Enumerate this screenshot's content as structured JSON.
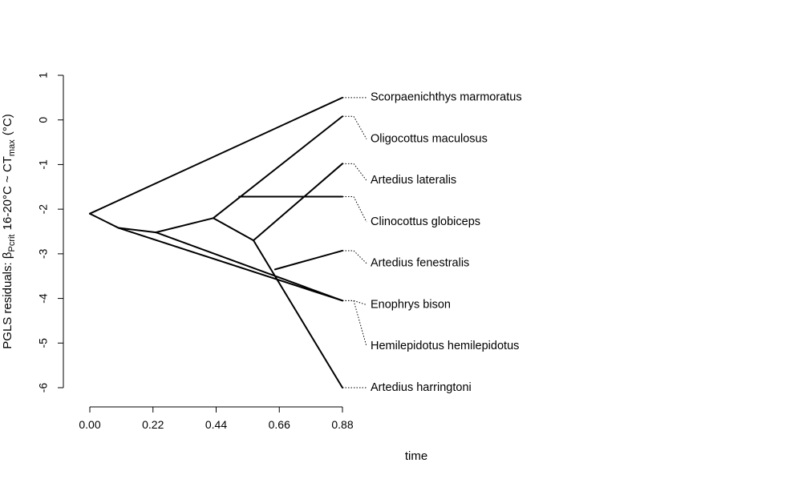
{
  "chart_data": {
    "type": "phenogram",
    "xlabel": "time",
    "ylabel": {
      "prefix": "PGLS residuals: ",
      "beta": "β",
      "beta_sub": "Pcrit",
      "middle": " 16-20°C ~ CT",
      "ct_sub": "max",
      "suffix": " (°C)"
    },
    "x_ticks": [
      "0.00",
      "0.22",
      "0.44",
      "0.66",
      "0.88"
    ],
    "y_ticks": [
      "1",
      "0",
      "-1",
      "-2",
      "-3",
      "-4",
      "-5",
      "-6"
    ],
    "xlim": [
      0,
      0.88
    ],
    "ylim": [
      -6,
      1
    ],
    "grid": false,
    "tips": [
      {
        "name": "Scorpaenichthys marmoratus",
        "value": 0.5
      },
      {
        "name": "Oligocottus maculosus",
        "value": 0.08
      },
      {
        "name": "Artedius lateralis",
        "value": -0.98
      },
      {
        "name": "Clinocottus globiceps",
        "value": -1.72
      },
      {
        "name": "Artedius fenestralis",
        "value": -2.93
      },
      {
        "name": "Enophrys bison",
        "value": -4.05
      },
      {
        "name": "Hemilepidotus hemilepidotus",
        "value": -4.05
      },
      {
        "name": "Artedius harringtoni",
        "value": -6.0
      }
    ],
    "branches": [
      {
        "from": [
          0.0,
          -2.1
        ],
        "to": [
          0.88,
          0.5
        ]
      },
      {
        "from": [
          0.0,
          -2.1
        ],
        "to": [
          0.1,
          -2.42
        ]
      },
      {
        "from": [
          0.1,
          -2.42
        ],
        "to": [
          0.23,
          -2.52
        ]
      },
      {
        "from": [
          0.1,
          -2.42
        ],
        "to": [
          0.88,
          -4.05
        ]
      },
      {
        "from": [
          0.23,
          -2.52
        ],
        "to": [
          0.88,
          -4.05
        ]
      },
      {
        "from": [
          0.23,
          -2.52
        ],
        "to": [
          0.43,
          -2.2
        ]
      },
      {
        "from": [
          0.43,
          -2.2
        ],
        "to": [
          0.88,
          0.08
        ]
      },
      {
        "from": [
          0.52,
          -1.72
        ],
        "to": [
          0.88,
          -1.72
        ]
      },
      {
        "from": [
          0.43,
          -2.2
        ],
        "to": [
          0.57,
          -2.7
        ]
      },
      {
        "from": [
          0.57,
          -2.7
        ],
        "to": [
          0.88,
          -0.98
        ]
      },
      {
        "from": [
          0.57,
          -2.7
        ],
        "to": [
          0.88,
          -6.0
        ]
      },
      {
        "from": [
          0.645,
          -3.35
        ],
        "to": [
          0.88,
          -2.93
        ]
      }
    ]
  }
}
